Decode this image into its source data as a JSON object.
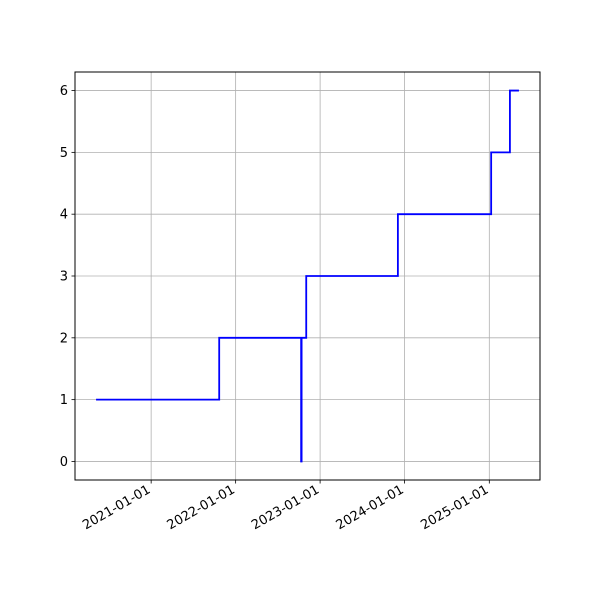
{
  "chart_data": {
    "type": "step",
    "x": [
      "2020-05-08",
      "2021-10-22",
      "2022-10-11",
      "2022-10-13",
      "2022-11-02",
      "2023-12-03",
      "2025-01-09",
      "2025-03-31",
      "2025-05-09"
    ],
    "series": [
      {
        "color": "#0000ff",
        "values": [
          1,
          2,
          0,
          2,
          3,
          4,
          5,
          6,
          6
        ]
      }
    ],
    "xlim": [
      "2020-02-07",
      "2025-08-08"
    ],
    "xticks": [
      "2021-01-01",
      "2022-01-01",
      "2023-01-01",
      "2024-01-01",
      "2025-01-01"
    ],
    "ylim": [
      -0.3,
      6.3
    ],
    "yticks": [
      0,
      1,
      2,
      3,
      4,
      5,
      6
    ],
    "grid": true
  }
}
